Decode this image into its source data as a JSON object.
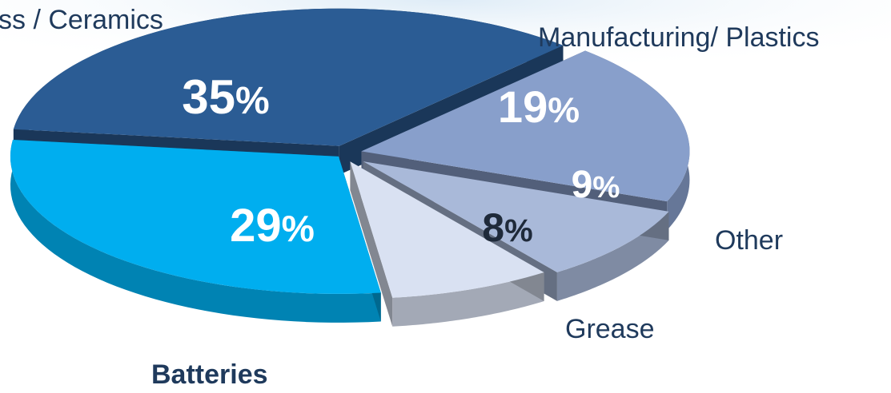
{
  "chart_data": {
    "type": "pie",
    "title": "",
    "slices": [
      {
        "label": "Glass / Ceramics",
        "display_label": "ss / Ceramics",
        "value": 35,
        "display": "35",
        "unit": "%",
        "color": "#2B5C94"
      },
      {
        "label": "Manufacturing/ Plastics",
        "display_label": "Manufacturing/ Plastics",
        "value": 19,
        "display": "19",
        "unit": "%",
        "color": "#889FCB"
      },
      {
        "label": "Other",
        "display_label": "Other",
        "value": 9,
        "display": "9",
        "unit": "%",
        "color": "#A9B9D9"
      },
      {
        "label": "Grease",
        "display_label": "Grease",
        "value": 8,
        "display": "8",
        "unit": "%",
        "color": "#D9E1F2"
      },
      {
        "label": "Batteries",
        "display_label": "Batteries",
        "value": 29,
        "display": "29",
        "unit": "%",
        "color": "#00AEEF"
      }
    ],
    "legend": "none",
    "style": "3d-exploded"
  }
}
